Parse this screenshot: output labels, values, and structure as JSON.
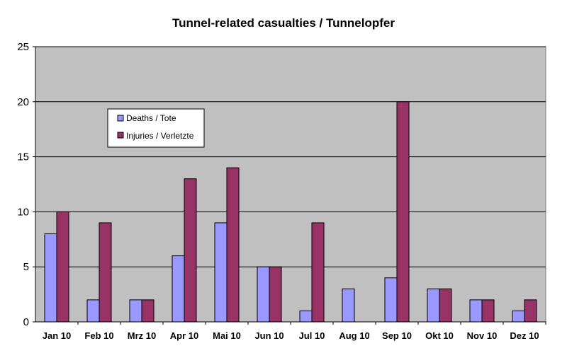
{
  "chart_data": {
    "type": "bar",
    "title": "Tunnel-related casualties / Tunnelopfer",
    "xlabel": "",
    "ylabel": "",
    "ylim": [
      0,
      25
    ],
    "yticks": [
      0,
      5,
      10,
      15,
      20,
      25
    ],
    "grid": true,
    "legend_position": "upper-left",
    "categories": [
      "Jan 10",
      "Feb 10",
      "Mrz 10",
      "Apr 10",
      "Mai 10",
      "Jun 10",
      "Jul 10",
      "Aug 10",
      "Sep 10",
      "Okt 10",
      "Nov 10",
      "Dez 10"
    ],
    "series": [
      {
        "name": "Deaths / Tote",
        "color": "#9999ff",
        "values": [
          8,
          2,
          2,
          6,
          9,
          5,
          1,
          3,
          4,
          3,
          2,
          1
        ]
      },
      {
        "name": "Injuries / Verletzte",
        "color": "#993366",
        "values": [
          10,
          9,
          2,
          13,
          14,
          5,
          9,
          0,
          20,
          3,
          2,
          2
        ]
      }
    ],
    "plot_background": "#c0c0c0"
  }
}
